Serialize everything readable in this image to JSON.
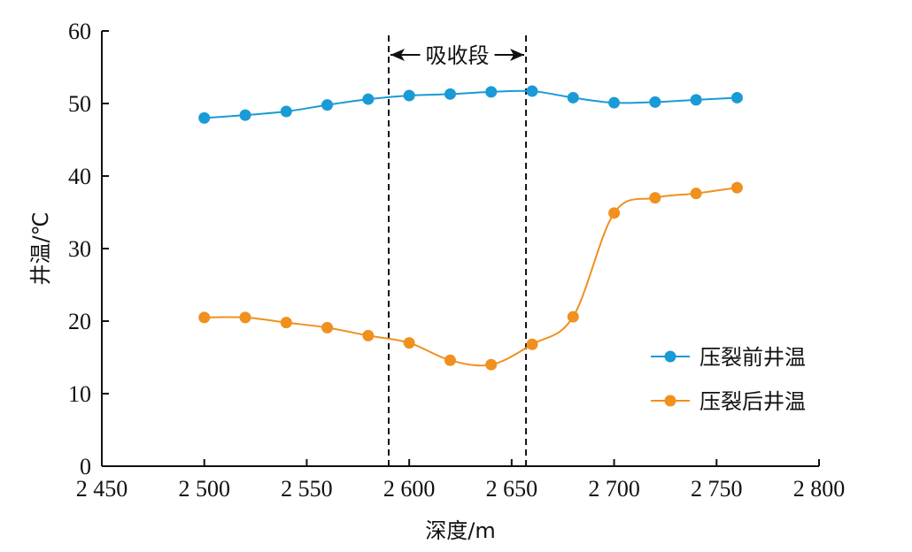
{
  "chart_data": {
    "type": "line",
    "xlabel": "深度/m",
    "ylabel": "井温/℃",
    "xlim": [
      2450,
      2800
    ],
    "ylim": [
      0,
      60
    ],
    "x_ticks": [
      {
        "value": 2450,
        "label": "2 450"
      },
      {
        "value": 2500,
        "label": "2 500"
      },
      {
        "value": 2550,
        "label": "2 550"
      },
      {
        "value": 2600,
        "label": "2 600"
      },
      {
        "value": 2650,
        "label": "2 650"
      },
      {
        "value": 2700,
        "label": "2 700"
      },
      {
        "value": 2750,
        "label": "2 750"
      },
      {
        "value": 2800,
        "label": "2 800"
      }
    ],
    "y_ticks": [
      {
        "value": 0,
        "label": "0"
      },
      {
        "value": 10,
        "label": "10"
      },
      {
        "value": 20,
        "label": "20"
      },
      {
        "value": 30,
        "label": "30"
      },
      {
        "value": 40,
        "label": "40"
      },
      {
        "value": 50,
        "label": "50"
      },
      {
        "value": 60,
        "label": "60"
      }
    ],
    "grid": false,
    "legend_position": "right",
    "band": {
      "label": "吸收段",
      "from": 2590,
      "to": 2657
    },
    "series": [
      {
        "name": "压裂前井温",
        "color": "#1a9ad6",
        "x": [
          2500,
          2520,
          2540,
          2560,
          2580,
          2600,
          2620,
          2640,
          2660,
          2680,
          2700,
          2720,
          2740,
          2760
        ],
        "y": [
          48.0,
          48.4,
          48.9,
          49.8,
          50.6,
          51.1,
          51.3,
          51.6,
          51.7,
          50.8,
          50.1,
          50.2,
          50.5,
          50.8
        ]
      },
      {
        "name": "压裂后井温",
        "color": "#f0901e",
        "x": [
          2500,
          2520,
          2540,
          2560,
          2580,
          2600,
          2620,
          2640,
          2660,
          2680,
          2700,
          2720,
          2740,
          2760
        ],
        "y": [
          20.5,
          20.5,
          19.8,
          19.1,
          18.0,
          17.0,
          14.6,
          14.0,
          16.8,
          20.6,
          34.9,
          37.0,
          37.6,
          38.4
        ]
      }
    ]
  }
}
